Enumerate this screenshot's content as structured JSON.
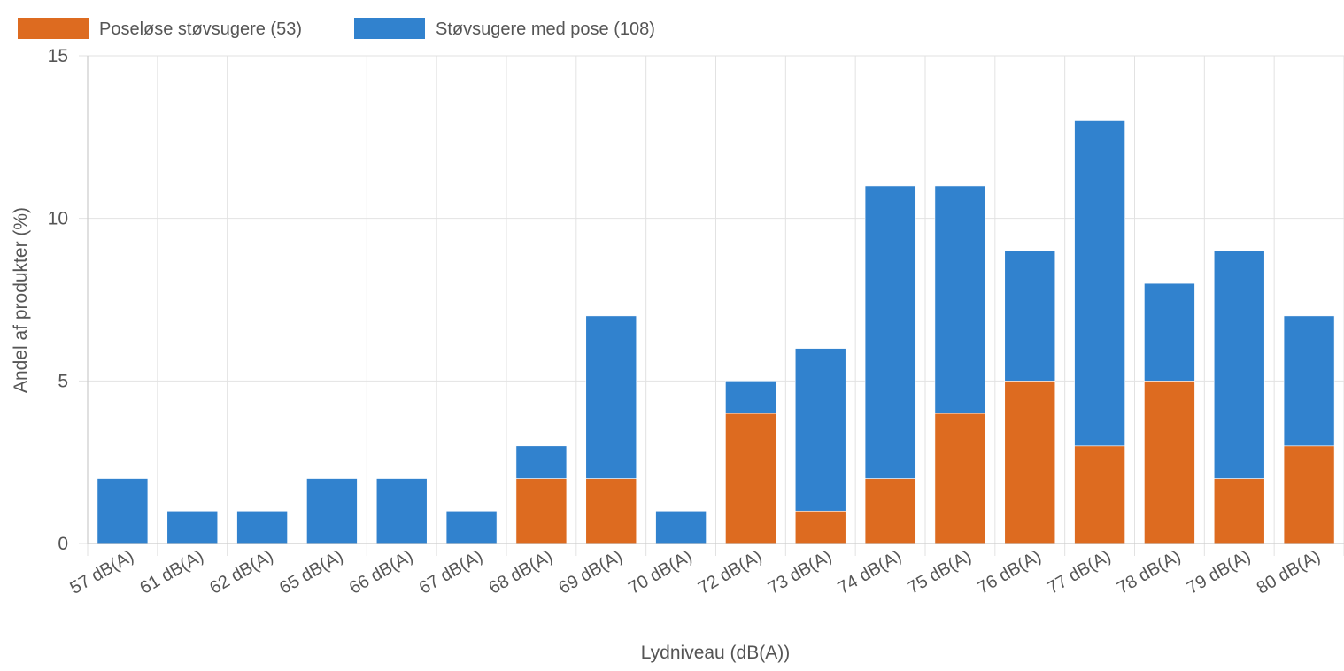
{
  "chart_data": {
    "type": "bar",
    "stacked": true,
    "title": "",
    "xlabel": "Lydniveau (dB(A))",
    "ylabel": "Andel af produkter (%)",
    "ylim": [
      0,
      15
    ],
    "yticks": [
      "0",
      "5",
      "10",
      "15"
    ],
    "grid": true,
    "legend_position": "top-left",
    "categories": [
      "57 dB(A)",
      "61 dB(A)",
      "62 dB(A)",
      "65 dB(A)",
      "66 dB(A)",
      "67 dB(A)",
      "68 dB(A)",
      "69 dB(A)",
      "70 dB(A)",
      "72 dB(A)",
      "73 dB(A)",
      "74 dB(A)",
      "75 dB(A)",
      "76 dB(A)",
      "77 dB(A)",
      "78 dB(A)",
      "79 dB(A)",
      "80 dB(A)"
    ],
    "series": [
      {
        "name": "Poseløse støvsugere (53)",
        "color": "#dd6b20",
        "values": [
          0,
          0,
          0,
          0,
          0,
          0,
          2,
          2,
          0,
          4,
          1,
          2,
          4,
          5,
          3,
          5,
          2,
          3
        ]
      },
      {
        "name": "Støvsugere med pose (108)",
        "color": "#3182ce",
        "values": [
          2,
          1,
          1,
          2,
          2,
          1,
          1,
          5,
          1,
          1,
          5,
          9,
          7,
          4,
          10,
          3,
          7,
          4
        ]
      }
    ]
  }
}
